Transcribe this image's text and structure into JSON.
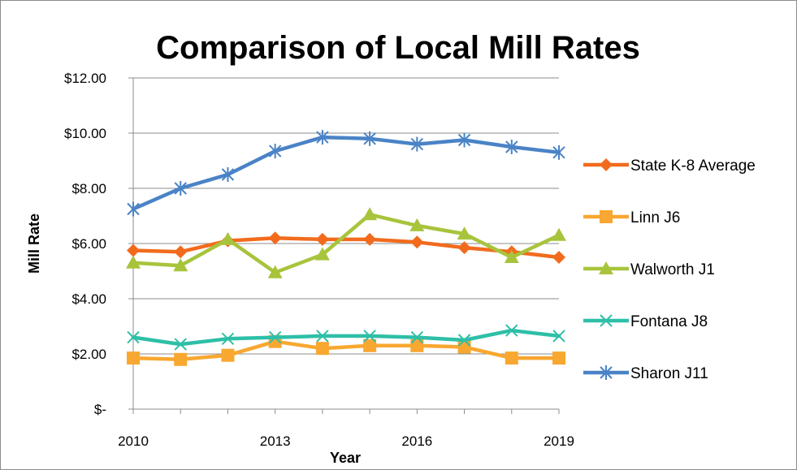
{
  "chart_data": {
    "type": "line",
    "title": "Comparison of Local Mill Rates",
    "xlabel": "Year",
    "ylabel": "Mill Rate",
    "x": [
      2010,
      2011,
      2012,
      2013,
      2014,
      2015,
      2016,
      2017,
      2018,
      2019
    ],
    "x_tick_values": [
      2010,
      2013,
      2016,
      2019
    ],
    "x_tick_labels": [
      "2010",
      "2013",
      "2016",
      "2019"
    ],
    "ylim": [
      0,
      12
    ],
    "y_tick_values": [
      0,
      2,
      4,
      6,
      8,
      10,
      12
    ],
    "y_tick_labels": [
      "$-",
      "$2.00",
      "$4.00",
      "$6.00",
      "$8.00",
      "$10.00",
      "$12.00"
    ],
    "grid": "horizontal",
    "legend_position": "right",
    "series": [
      {
        "name": "State K-8  Average",
        "color": "#f26b1d",
        "marker": "diamond",
        "values": [
          5.75,
          5.7,
          6.1,
          6.2,
          6.15,
          6.15,
          6.05,
          5.85,
          5.7,
          5.5
        ]
      },
      {
        "name": "Linn J6",
        "color": "#f8a730",
        "marker": "square",
        "values": [
          1.85,
          1.8,
          1.95,
          2.45,
          2.2,
          2.3,
          2.3,
          2.25,
          1.85,
          1.85
        ]
      },
      {
        "name": "Walworth J1",
        "color": "#a8c43c",
        "marker": "triangle",
        "values": [
          5.3,
          5.2,
          6.15,
          4.95,
          5.6,
          7.05,
          6.65,
          6.35,
          5.5,
          6.3
        ]
      },
      {
        "name": "Fontana J8",
        "color": "#2ebfa7",
        "marker": "x",
        "values": [
          2.6,
          2.35,
          2.55,
          2.6,
          2.65,
          2.65,
          2.6,
          2.5,
          2.85,
          2.65
        ]
      },
      {
        "name": "Sharon J11",
        "color": "#4a83c6",
        "marker": "star",
        "values": [
          7.25,
          8.0,
          8.5,
          9.35,
          9.85,
          9.8,
          9.6,
          9.75,
          9.5,
          9.3
        ]
      }
    ]
  }
}
